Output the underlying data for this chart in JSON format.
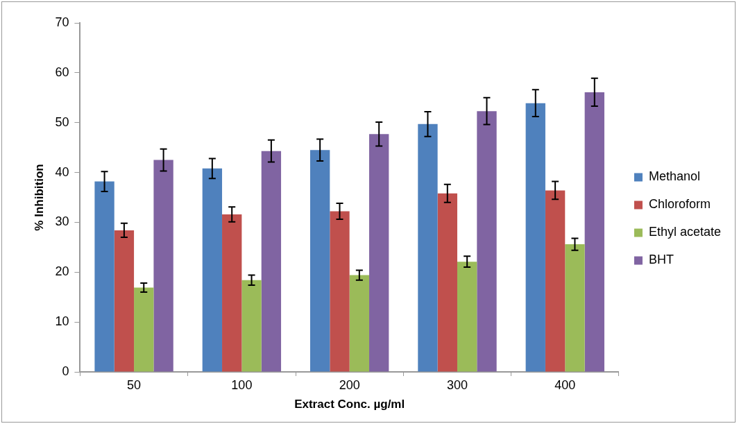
{
  "chart_data": {
    "type": "bar",
    "xlabel": "Extract Conc. µg/ml",
    "ylabel": "% Inhibition",
    "categories": [
      "50",
      "100",
      "200",
      "300",
      "400"
    ],
    "series": [
      {
        "name": "Methanol",
        "color": "#4f81bd",
        "values": [
          38.2,
          40.8,
          44.5,
          49.7,
          53.9
        ],
        "errors": [
          2.0,
          2.0,
          2.2,
          2.5,
          2.7
        ]
      },
      {
        "name": "Chloroform",
        "color": "#c0504d",
        "values": [
          28.4,
          31.6,
          32.2,
          35.8,
          36.4
        ],
        "errors": [
          1.4,
          1.5,
          1.6,
          1.8,
          1.8
        ]
      },
      {
        "name": "Ethyl acetate",
        "color": "#9bbb59",
        "values": [
          16.9,
          18.4,
          19.4,
          22.1,
          25.6
        ],
        "errors": [
          0.9,
          1.0,
          1.0,
          1.1,
          1.2
        ]
      },
      {
        "name": "BHT",
        "color": "#8064a2",
        "values": [
          42.5,
          44.3,
          47.7,
          52.3,
          56.1
        ],
        "errors": [
          2.2,
          2.2,
          2.4,
          2.7,
          2.8
        ]
      }
    ],
    "ylim": [
      0,
      70
    ],
    "yticks": [
      0,
      10,
      20,
      30,
      40,
      50,
      60,
      70
    ],
    "grid": false,
    "legend": "right"
  }
}
